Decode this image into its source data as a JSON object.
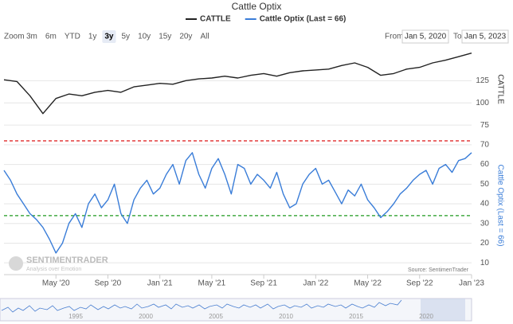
{
  "chart_data": {
    "type": "line",
    "title": "Cattle Optix",
    "range_selector": {
      "label": "Zoom",
      "buttons": [
        "3m",
        "6m",
        "YTD",
        "1y",
        "3y",
        "5y",
        "10y",
        "15y",
        "20y",
        "All"
      ],
      "selected": 4,
      "from_label": "From",
      "from": "Jan 5, 2020",
      "to_label": "To",
      "to": "Jan 5, 2023"
    },
    "xlim": [
      0,
      36
    ],
    "xticks": [
      {
        "value": 4,
        "label": "May '20"
      },
      {
        "value": 8,
        "label": "Sep '20"
      },
      {
        "value": 12,
        "label": "Jan '21"
      },
      {
        "value": 16,
        "label": "May '21"
      },
      {
        "value": 20,
        "label": "Sep '21"
      },
      {
        "value": 24,
        "label": "Jan '22"
      },
      {
        "value": 28,
        "label": "May '22"
      },
      {
        "value": 32,
        "label": "Sep '22"
      },
      {
        "value": 36,
        "label": "Jan '23"
      }
    ],
    "ylim": [
      68,
      162
    ],
    "yticks": [
      75,
      100,
      125
    ],
    "ylabel": "CATTLE",
    "y2lim": [
      4,
      74
    ],
    "y2ticks": [
      10,
      20,
      30,
      40,
      50,
      60,
      70
    ],
    "y2label": "Cattle Optix (Last = 66)",
    "reference_lines": [
      {
        "value": 72,
        "color": "#e02a2a"
      },
      {
        "value": 34,
        "color": "#1f9a1f"
      }
    ],
    "series": [
      {
        "name": "CATTLE",
        "color": "#222222",
        "axis": "y",
        "x": [
          0,
          1,
          2,
          3,
          4,
          5,
          6,
          7,
          8,
          9,
          10,
          11,
          12,
          13,
          14,
          15,
          16,
          17,
          18,
          19,
          20,
          21,
          22,
          23,
          24,
          25,
          26,
          27,
          28,
          29,
          30,
          31,
          32,
          33,
          34,
          35,
          36
        ],
        "values": [
          126,
          124,
          108,
          88,
          105,
          110,
          108,
          112,
          114,
          112,
          118,
          120,
          122,
          121,
          125,
          127,
          128,
          130,
          128,
          131,
          133,
          130,
          134,
          136,
          137,
          138,
          142,
          145,
          140,
          131,
          133,
          138,
          140,
          145,
          148,
          152,
          156
        ]
      },
      {
        "name": "Cattle Optix (Last = 66)",
        "color": "#3a7dd8",
        "axis": "y2",
        "x": [
          0,
          0.5,
          1,
          1.5,
          2,
          2.5,
          3,
          3.5,
          4,
          4.5,
          5,
          5.5,
          6,
          6.5,
          7,
          7.5,
          8,
          8.5,
          9,
          9.5,
          10,
          10.5,
          11,
          11.5,
          12,
          12.5,
          13,
          13.5,
          14,
          14.5,
          15,
          15.5,
          16,
          16.5,
          17,
          17.5,
          18,
          18.5,
          19,
          19.5,
          20,
          20.5,
          21,
          21.5,
          22,
          22.5,
          23,
          23.5,
          24,
          24.5,
          25,
          25.5,
          26,
          26.5,
          27,
          27.5,
          28,
          28.5,
          29,
          29.5,
          30,
          30.5,
          31,
          31.5,
          32,
          32.5,
          33,
          33.5,
          34,
          34.5,
          35,
          35.5,
          36
        ],
        "values": [
          57,
          52,
          45,
          40,
          35,
          32,
          28,
          22,
          15,
          20,
          30,
          35,
          28,
          40,
          45,
          38,
          42,
          50,
          35,
          30,
          42,
          48,
          52,
          45,
          48,
          55,
          60,
          50,
          62,
          66,
          55,
          48,
          58,
          63,
          55,
          45,
          60,
          58,
          50,
          55,
          52,
          48,
          56,
          45,
          38,
          40,
          50,
          55,
          58,
          50,
          52,
          46,
          40,
          47,
          44,
          50,
          42,
          38,
          33,
          36,
          40,
          45,
          48,
          52,
          55,
          57,
          50,
          58,
          60,
          56,
          62,
          63,
          66
        ]
      }
    ],
    "source": "Source: SentimenTrader",
    "logo": "SENTIMENTRADER",
    "logo_tagline": "Analysis over Emotion",
    "navigator_labels": [
      "1995",
      "2000",
      "2005",
      "2010",
      "2015",
      "2020"
    ]
  }
}
